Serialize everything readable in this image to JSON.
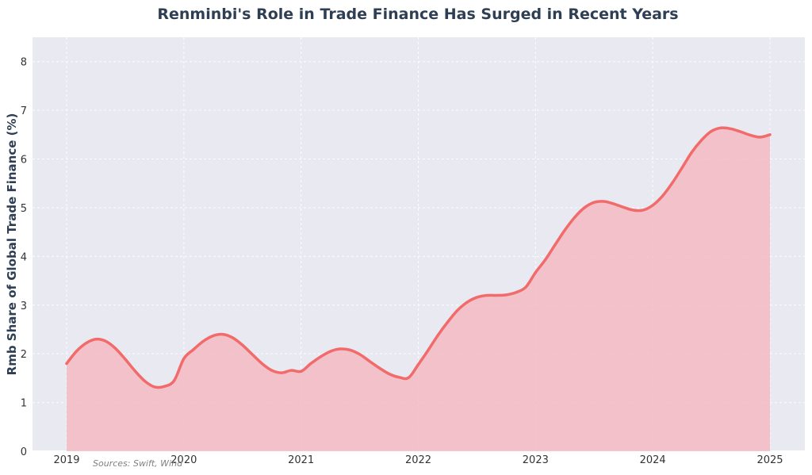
{
  "chart_data": {
    "type": "area",
    "title": "Renminbi's Role in Trade Finance Has Surged in Recent Years",
    "xlabel": "",
    "ylabel": "Rmb Share of Global Trade Finance (%)",
    "source": "Sources: Swift, Wind",
    "xlim": [
      2019,
      2025
    ],
    "ylim": [
      0,
      8.5
    ],
    "x_ticks": [
      2019,
      2020,
      2021,
      2022,
      2023,
      2024,
      2025
    ],
    "y_ticks": [
      0,
      1,
      2,
      3,
      4,
      5,
      6,
      7,
      8
    ],
    "grid": true,
    "colors": {
      "line": "#f26b6b",
      "fill": "#f4b3bb",
      "background": "#e9e9f2"
    },
    "series": [
      {
        "x": [
          2019.0,
          2019.083,
          2019.167,
          2019.25,
          2019.333,
          2019.417,
          2019.5,
          2019.583,
          2019.667,
          2019.75,
          2019.833,
          2019.917,
          2020.0,
          2020.083,
          2020.167,
          2020.25,
          2020.333,
          2020.417,
          2020.5,
          2020.583,
          2020.667,
          2020.75,
          2020.833,
          2020.917,
          2021.0,
          2021.083,
          2021.167,
          2021.25,
          2021.333,
          2021.417,
          2021.5,
          2021.583,
          2021.667,
          2021.75,
          2021.833,
          2021.917,
          2022.0,
          2022.083,
          2022.167,
          2022.25,
          2022.333,
          2022.417,
          2022.5,
          2022.583,
          2022.667,
          2022.75,
          2022.833,
          2022.917,
          2023.0,
          2023.083,
          2023.167,
          2023.25,
          2023.333,
          2023.417,
          2023.5,
          2023.583,
          2023.667,
          2023.75,
          2023.833,
          2023.917,
          2024.0,
          2024.083,
          2024.167,
          2024.25,
          2024.333,
          2024.417,
          2024.5,
          2024.583,
          2024.667,
          2024.75,
          2024.833,
          2024.917,
          2025.0
        ],
        "values": [
          1.8,
          2.05,
          2.22,
          2.3,
          2.26,
          2.11,
          1.89,
          1.65,
          1.44,
          1.32,
          1.33,
          1.45,
          1.9,
          2.09,
          2.26,
          2.37,
          2.4,
          2.33,
          2.18,
          1.99,
          1.8,
          1.66,
          1.61,
          1.66,
          1.64,
          1.8,
          1.94,
          2.05,
          2.1,
          2.08,
          1.99,
          1.85,
          1.71,
          1.59,
          1.52,
          1.51,
          1.78,
          2.07,
          2.38,
          2.65,
          2.89,
          3.06,
          3.16,
          3.2,
          3.2,
          3.21,
          3.26,
          3.37,
          3.67,
          3.93,
          4.24,
          4.54,
          4.8,
          5.0,
          5.11,
          5.13,
          5.08,
          5.01,
          4.95,
          4.95,
          5.05,
          5.24,
          5.51,
          5.82,
          6.14,
          6.39,
          6.57,
          6.64,
          6.62,
          6.56,
          6.49,
          6.45,
          6.5
        ]
      }
    ]
  }
}
